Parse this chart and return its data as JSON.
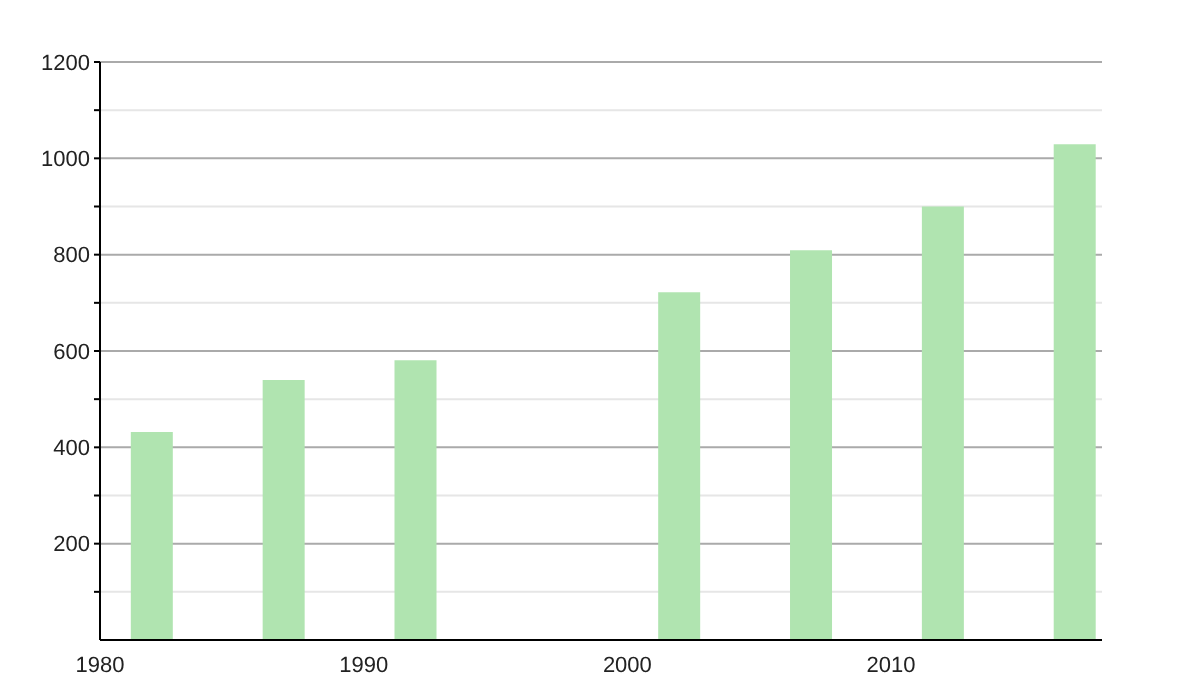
{
  "chart_data": {
    "type": "bar",
    "x": [
      1982,
      1987,
      1992,
      2002,
      2007,
      2012,
      2017
    ],
    "values": [
      432,
      540,
      581,
      722,
      809,
      900,
      1029
    ],
    "color": "#b0e4b0",
    "xlim": [
      1980,
      2018
    ],
    "xticks": [
      1980,
      1990,
      2000,
      2010
    ],
    "ylim": [
      0,
      1200
    ],
    "yticks": [
      {
        "value": 100,
        "label": null
      },
      200,
      {
        "value": 300,
        "label": null
      },
      400,
      {
        "value": 500,
        "label": null
      },
      600,
      {
        "value": 700,
        "label": null
      },
      800,
      {
        "value": 900,
        "label": null
      },
      1000,
      {
        "value": 1100,
        "label": null
      },
      1200
    ],
    "grid": "y"
  }
}
